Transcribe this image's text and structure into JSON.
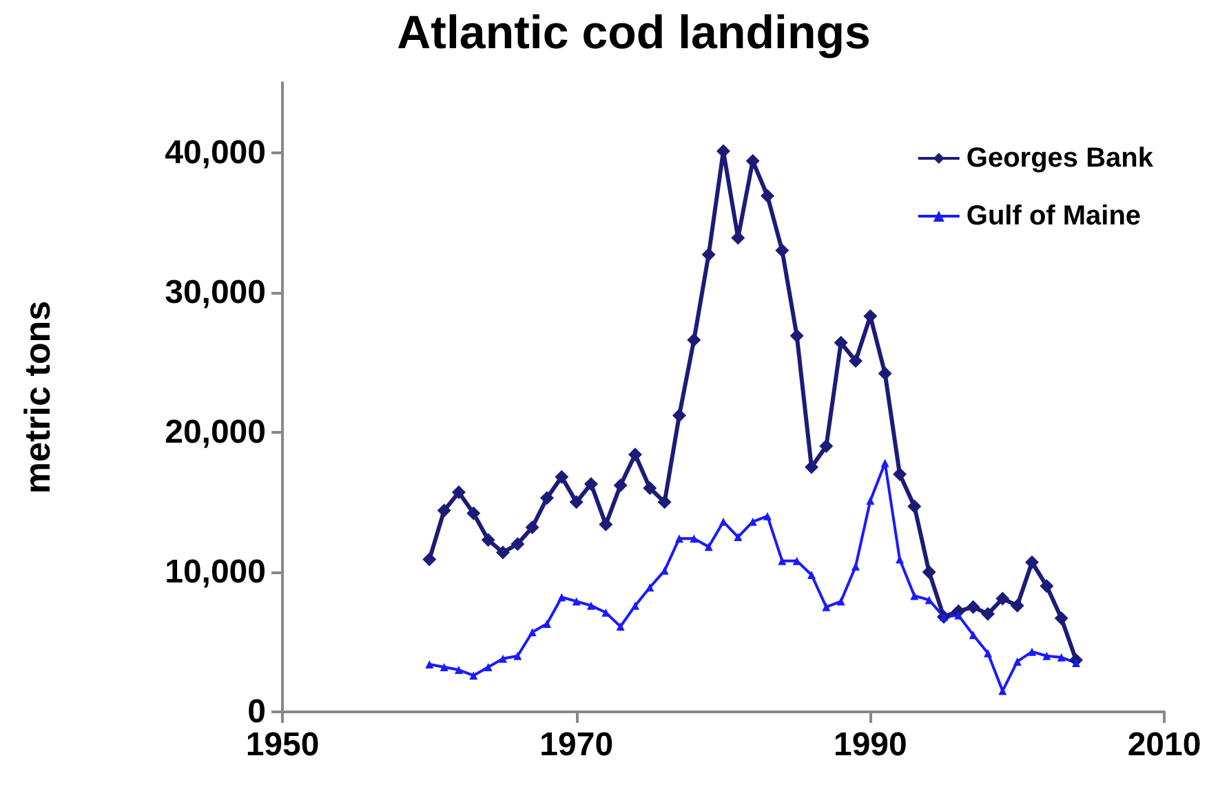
{
  "chart_data": {
    "type": "line",
    "title": "Atlantic cod landings",
    "ylabel": "metric tons",
    "x": [
      1960,
      1961,
      1962,
      1963,
      1964,
      1965,
      1966,
      1967,
      1968,
      1969,
      1970,
      1971,
      1972,
      1973,
      1974,
      1975,
      1976,
      1977,
      1978,
      1979,
      1980,
      1981,
      1982,
      1983,
      1984,
      1985,
      1986,
      1987,
      1988,
      1989,
      1990,
      1991,
      1992,
      1993,
      1994,
      1995,
      1996,
      1997,
      1998,
      1999,
      2000,
      2001,
      2002,
      2003,
      2004
    ],
    "series": [
      {
        "name": "Georges Bank",
        "color": "#1c1c78",
        "marker": "diamond",
        "values": [
          10900,
          14400,
          15700,
          14200,
          12300,
          11400,
          12000,
          13200,
          15300,
          16800,
          15000,
          16300,
          13400,
          16200,
          18400,
          16000,
          15000,
          21200,
          26600,
          32700,
          40100,
          33900,
          39400,
          36900,
          33000,
          26900,
          17500,
          19000,
          26400,
          25100,
          28300,
          24200,
          17000,
          14700,
          10000,
          6800,
          7200,
          7500,
          7000,
          8100,
          7600,
          10700,
          9000,
          6700,
          3700
        ]
      },
      {
        "name": "Gulf of Maine",
        "color": "#1a1aff",
        "marker": "triangle",
        "values": [
          3400,
          3200,
          3000,
          2600,
          3200,
          3800,
          4000,
          5700,
          6300,
          8200,
          7900,
          7600,
          7100,
          6100,
          7600,
          8900,
          10100,
          12400,
          12400,
          11800,
          13600,
          12500,
          13600,
          14000,
          10800,
          10800,
          9800,
          7500,
          7900,
          10400,
          15100,
          17800,
          10900,
          8300,
          8000,
          6800,
          6900,
          5500,
          4200,
          1500,
          3600,
          4300,
          4000,
          3900,
          3500
        ]
      }
    ],
    "xlim": [
      1950,
      2010
    ],
    "xticks": [
      1950,
      1970,
      1990,
      2010
    ],
    "ylim": [
      0,
      45000
    ],
    "yticks": [
      {
        "value": 0,
        "label": "0"
      },
      {
        "value": 10000,
        "label": "10,000"
      },
      {
        "value": 20000,
        "label": "20,000"
      },
      {
        "value": 30000,
        "label": "30,000"
      },
      {
        "value": 40000,
        "label": "40,000"
      }
    ],
    "grid": false,
    "legend": "top right",
    "line_style": "solid"
  }
}
